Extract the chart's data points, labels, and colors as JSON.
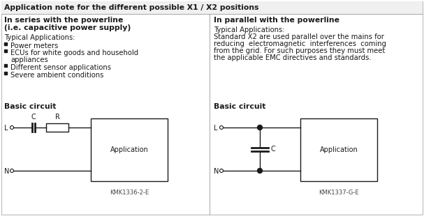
{
  "title": "Application note for the different possible X1 / X2 positions",
  "left_heading_line1": "In series with the powerline",
  "left_heading_line2": "(i.e. capacitive power supply)",
  "right_heading": "In parallel with the powerline",
  "left_typical": "Typical Applications:",
  "left_bullets": [
    "Power meters",
    "ECUs for white goods and household\n    appliances",
    "Different sensor applications",
    "Severe ambient conditions"
  ],
  "right_typical": "Typical Applications:",
  "right_text_line1": "Standard X2 are used parallel over the mains for",
  "right_text_line2": "reducing  electromagnetic  interferences  coming",
  "right_text_line3": "from the grid. For such purposes they must meet",
  "right_text_line4": "the applicable EMC directives and standards.",
  "left_circuit_label": "Basic circuit",
  "right_circuit_label": "Basic circuit",
  "left_code": "KMK1336-2-E",
  "right_code": "KMK1337-G-E",
  "bg_color": "#ffffff",
  "text_color": "#1a1a1a",
  "line_color": "#1a1a1a"
}
